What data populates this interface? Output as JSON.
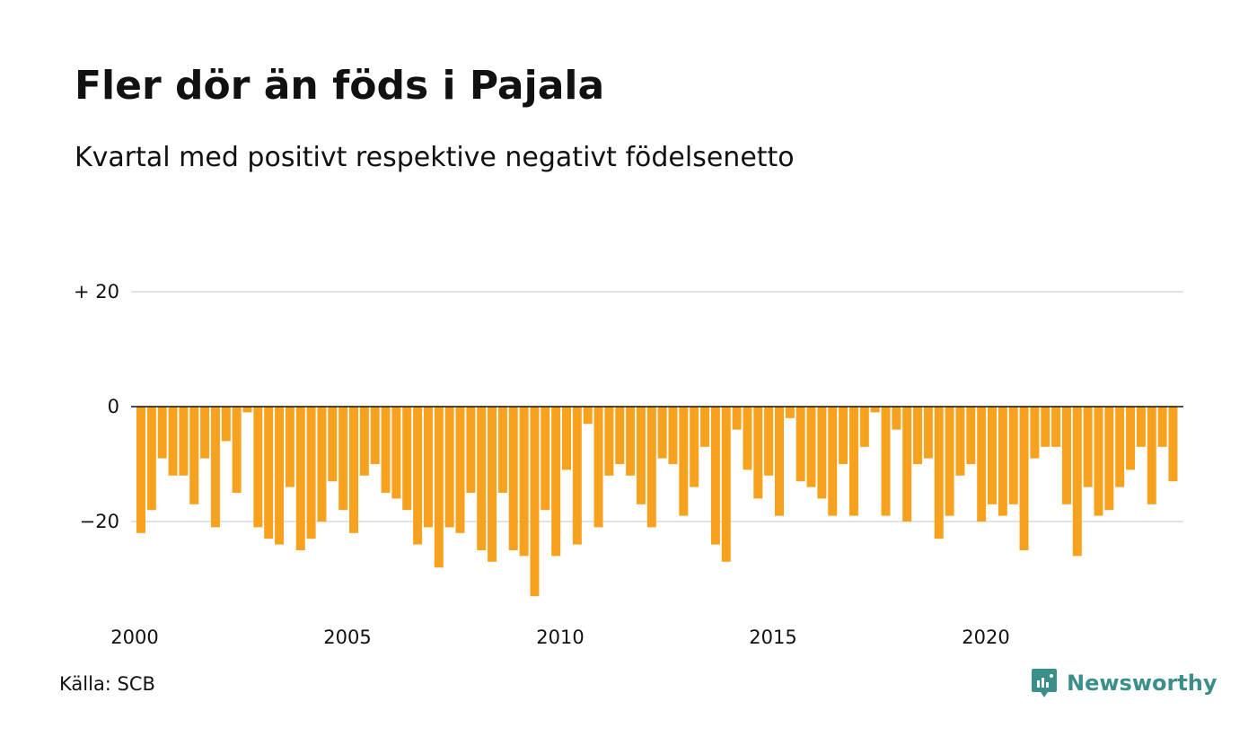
{
  "title": "Fler dör än föds i Pajala",
  "subtitle": "Kvartal med positivt respektive negativt födelsenetto",
  "source": "Källa: SCB",
  "brand": "Newsworthy",
  "colors": {
    "bar": "#f7a21e",
    "grid": "#e3e3e3",
    "zero_line": "#111111",
    "brand": "#3b8f8a"
  },
  "chart_data": {
    "type": "bar",
    "title": "Fler dör än föds i Pajala",
    "subtitle": "Kvartal med positivt respektive negativt födelsenetto",
    "xlabel": "",
    "ylabel": "",
    "ylim": [
      -33,
      30
    ],
    "y_ticks": [
      {
        "value": 20,
        "label": "+ 20"
      },
      {
        "value": 0,
        "label": "0"
      },
      {
        "value": -20,
        "label": "−20"
      }
    ],
    "x_ticks": [
      {
        "value": 2000,
        "label": "2000"
      },
      {
        "value": 2005,
        "label": "2005"
      },
      {
        "value": 2010,
        "label": "2010"
      },
      {
        "value": 2015,
        "label": "2015"
      },
      {
        "value": 2020,
        "label": "2020"
      }
    ],
    "grid": true,
    "series": [
      {
        "values": [
          -22,
          -18,
          -9,
          -12,
          -12,
          -17,
          -9,
          -21,
          -6,
          -15,
          -1,
          -21,
          -23,
          -24,
          -14,
          -25,
          -23,
          -20,
          -13,
          -18,
          -22,
          -12,
          -10,
          -15,
          -16,
          -18,
          -24,
          -21,
          -28,
          -21,
          -22,
          -15,
          -25,
          -27,
          -15,
          -25,
          -26,
          -33,
          -18,
          -26,
          -11,
          -24,
          -3,
          -21,
          -12,
          -10,
          -12,
          -17,
          -21,
          -9,
          -10,
          -19,
          -14,
          -7,
          -24,
          -27,
          -4,
          -11,
          -16,
          -12,
          -19,
          -2,
          -13,
          -14,
          -16,
          -19,
          -10,
          -19,
          -7,
          -1,
          -19,
          -4,
          -20,
          -10,
          -9,
          -23,
          -19,
          -12,
          -10,
          -20,
          -17,
          -19,
          -17,
          -25,
          -9,
          -7,
          -7,
          -17,
          -26,
          -14,
          -19,
          -18,
          -14,
          -11,
          -7,
          -17,
          -7,
          -13
        ]
      }
    ]
  }
}
